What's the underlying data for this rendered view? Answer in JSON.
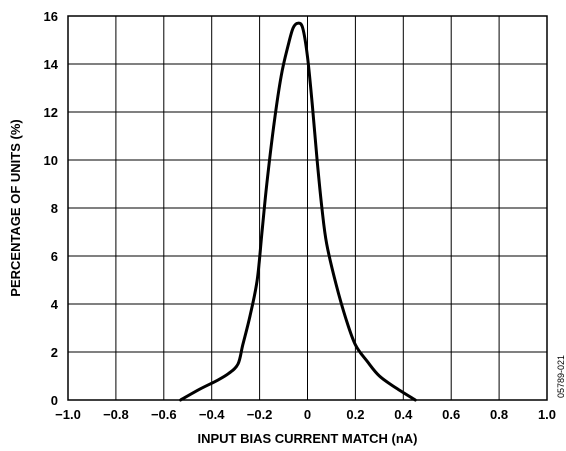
{
  "chart_data": {
    "type": "line",
    "title": "",
    "xlabel": "INPUT BIAS CURRENT MATCH (nA)",
    "ylabel": "PERCENTAGE OF UNITS (%)",
    "xlim": [
      -1.0,
      1.0
    ],
    "ylim": [
      0,
      16
    ],
    "grid": true,
    "x_ticks": [
      "−1.0",
      "−0.8",
      "−0.6",
      "−0.4",
      "−0.2",
      "0",
      "0.2",
      "0.4",
      "0.6",
      "0.8",
      "1.0"
    ],
    "y_ticks": [
      "0",
      "2",
      "4",
      "6",
      "8",
      "10",
      "12",
      "14",
      "16"
    ],
    "series": [
      {
        "x": [
          -0.53,
          -0.45,
          -0.38,
          -0.33,
          -0.29,
          -0.27,
          -0.24,
          -0.21,
          -0.19,
          -0.17,
          -0.14,
          -0.11,
          -0.08,
          -0.06,
          -0.04,
          -0.02,
          0.0,
          0.02,
          0.04,
          0.06,
          0.08,
          0.12,
          0.16,
          0.2,
          0.25,
          0.3,
          0.37,
          0.45
        ],
        "y": [
          0.0,
          0.45,
          0.8,
          1.1,
          1.5,
          2.3,
          3.5,
          5.0,
          7.0,
          9.0,
          11.5,
          13.5,
          14.8,
          15.5,
          15.7,
          15.5,
          14.3,
          12.3,
          10.0,
          8.0,
          6.5,
          4.8,
          3.4,
          2.3,
          1.6,
          1.0,
          0.5,
          0.0
        ]
      }
    ]
  },
  "figure_code": "05789-021"
}
